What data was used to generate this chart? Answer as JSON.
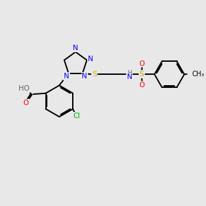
{
  "background_color": "#e8e8e8",
  "atom_colors": {
    "N": "#0000ff",
    "O": "#ff0000",
    "S": "#ccaa00",
    "Cl": "#00aa00",
    "C": "#000000",
    "H": "#606060"
  },
  "bond_color": "#000000",
  "figsize": [
    3.0,
    3.0
  ],
  "dpi": 100
}
